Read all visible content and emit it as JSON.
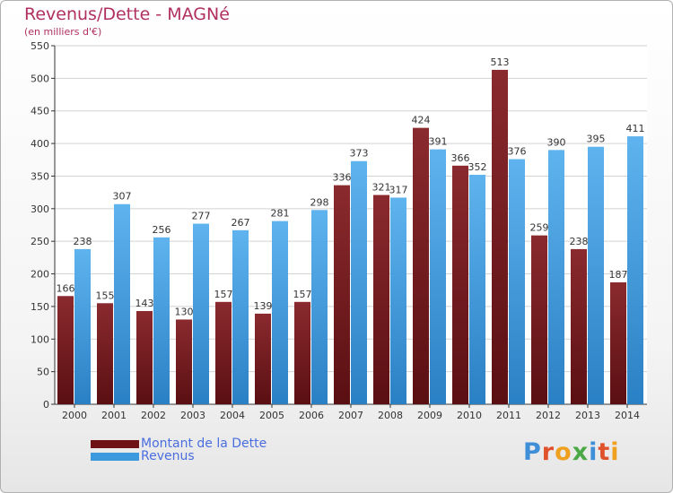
{
  "title": "Revenus/Dette - MAGNé",
  "subtitle": "(en milliers d'€)",
  "colors": {
    "dette": "#7a1f22",
    "revenus": "#3d99de",
    "axis_text": "#333333",
    "title": "#b03060",
    "legend_text": "#4a6ee0"
  },
  "legend": {
    "dette_label": "Montant de la Dette",
    "revenus_label": "Revenus"
  },
  "logo_text": "Proxiti",
  "chart_data": {
    "type": "bar",
    "title": "Revenus/Dette - MAGNé",
    "subtitle": "(en milliers d'€)",
    "categories": [
      "2000",
      "2001",
      "2002",
      "2003",
      "2004",
      "2005",
      "2006",
      "2007",
      "2008",
      "2009",
      "2010",
      "2011",
      "2012",
      "2013",
      "2014"
    ],
    "series": [
      {
        "name": "Montant de la Dette",
        "values": [
          166,
          155,
          143,
          130,
          157,
          139,
          157,
          336,
          321,
          424,
          366,
          513,
          259,
          238,
          187
        ]
      },
      {
        "name": "Revenus",
        "values": [
          238,
          307,
          256,
          277,
          267,
          281,
          298,
          373,
          317,
          391,
          352,
          376,
          390,
          395,
          411
        ]
      }
    ],
    "ylim": [
      0,
      550
    ],
    "yticks": [
      0,
      50,
      100,
      150,
      200,
      250,
      300,
      350,
      400,
      450,
      500,
      550
    ],
    "grid": true,
    "legend_position": "bottom-left"
  }
}
